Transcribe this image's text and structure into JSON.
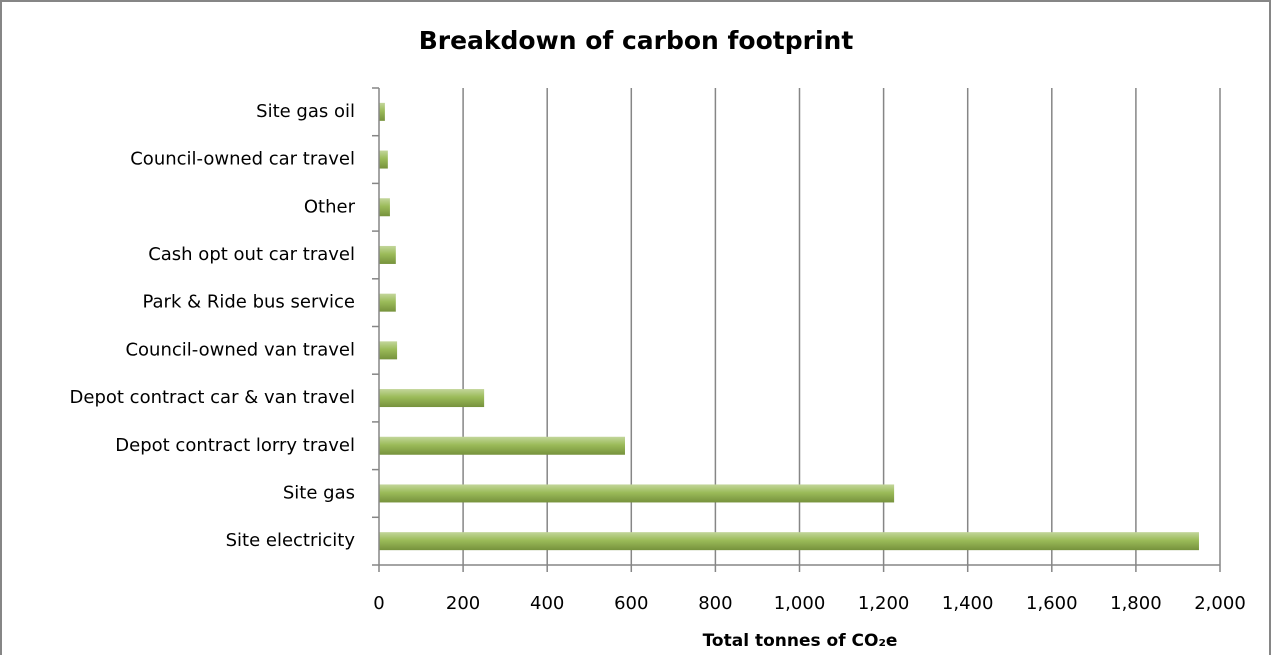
{
  "chart_data": {
    "type": "bar",
    "orientation": "horizontal",
    "title": "Breakdown of carbon footprint",
    "x_label": "Total tonnes of CO₂e",
    "categories": [
      "Site electricity",
      "Site gas",
      "Depot contract lorry travel",
      "Depot contract car & van travel",
      "Council-owned van travel",
      "Park & Ride bus service",
      "Cash opt out car travel",
      "Other",
      "Council-owned car travel",
      "Site gas oil"
    ],
    "values": [
      1950,
      1225,
      585,
      250,
      43,
      40,
      40,
      26,
      21,
      14
    ],
    "color": "#9bbb59",
    "xlim": [
      0,
      2000
    ],
    "xticks": [
      0,
      200,
      400,
      600,
      800,
      {
        "value": 1000,
        "label": "1,000"
      },
      {
        "value": 1200,
        "label": "1,200"
      },
      {
        "value": 1400,
        "label": "1,400"
      },
      {
        "value": 1600,
        "label": "1,600"
      },
      {
        "value": 1800,
        "label": "1,800"
      },
      {
        "value": 2000,
        "label": "2,000"
      }
    ],
    "grid": true
  }
}
